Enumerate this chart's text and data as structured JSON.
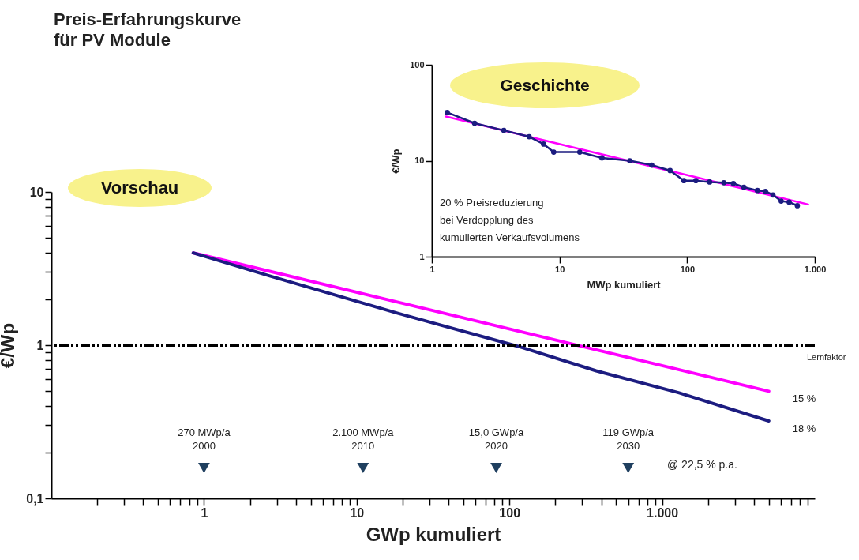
{
  "chart_data": [
    {
      "type": "line",
      "title": "Preis-Erfahrungskurve\nfür PV Module",
      "xlabel": "GWp kumuliert",
      "ylabel": "€/Wp",
      "log": "xy",
      "xlim": [
        0.1,
        10000
      ],
      "ylim": [
        0.1,
        10
      ],
      "xticks": [
        {
          "value": 0.2,
          "label": null
        },
        {
          "value": 0.3,
          "label": null
        },
        {
          "value": 0.4,
          "label": null
        },
        {
          "value": 0.5,
          "label": null
        },
        {
          "value": 0.6,
          "label": null
        },
        {
          "value": 0.7,
          "label": null
        },
        {
          "value": 0.8,
          "label": null
        },
        {
          "value": 0.9,
          "label": null
        },
        1,
        {
          "value": 2,
          "label": null
        },
        {
          "value": 3,
          "label": null
        },
        {
          "value": 4,
          "label": null
        },
        {
          "value": 5,
          "label": null
        },
        {
          "value": 6,
          "label": null
        },
        {
          "value": 7,
          "label": null
        },
        {
          "value": 8,
          "label": null
        },
        {
          "value": 9,
          "label": null
        },
        10,
        {
          "value": 20,
          "label": null
        },
        {
          "value": 30,
          "label": null
        },
        {
          "value": 40,
          "label": null
        },
        {
          "value": 50,
          "label": null
        },
        {
          "value": 60,
          "label": null
        },
        {
          "value": 70,
          "label": null
        },
        {
          "value": 80,
          "label": null
        },
        {
          "value": 90,
          "label": null
        },
        100,
        {
          "value": 200,
          "label": null
        },
        {
          "value": 300,
          "label": null
        },
        {
          "value": 400,
          "label": null
        },
        {
          "value": 500,
          "label": null
        },
        {
          "value": 600,
          "label": null
        },
        {
          "value": 700,
          "label": null
        },
        {
          "value": 800,
          "label": null
        },
        {
          "value": 900,
          "label": null
        },
        {
          "value": 1000,
          "label": "1.000"
        },
        {
          "value": 2000,
          "label": null
        },
        {
          "value": 3000,
          "label": null
        },
        {
          "value": 4000,
          "label": null
        },
        {
          "value": 5000,
          "label": null
        },
        {
          "value": 6000,
          "label": null
        },
        {
          "value": 7000,
          "label": null
        },
        {
          "value": 8000,
          "label": null
        },
        {
          "value": 9000,
          "label": null
        }
      ],
      "yticks": [
        {
          "value": 0.1,
          "label": "0,1"
        },
        {
          "value": 0.2,
          "label": null
        },
        {
          "value": 0.3,
          "label": null
        },
        {
          "value": 0.4,
          "label": null
        },
        {
          "value": 0.5,
          "label": null
        },
        {
          "value": 0.6,
          "label": null
        },
        {
          "value": 0.7,
          "label": null
        },
        {
          "value": 0.8,
          "label": null
        },
        {
          "value": 0.9,
          "label": null
        },
        1,
        {
          "value": 2,
          "label": null
        },
        {
          "value": 3,
          "label": null
        },
        {
          "value": 4,
          "label": null
        },
        {
          "value": 5,
          "label": null
        },
        {
          "value": 6,
          "label": null
        },
        {
          "value": 7,
          "label": null
        },
        {
          "value": 8,
          "label": null
        },
        {
          "value": 9,
          "label": null
        },
        10
      ],
      "series": [
        {
          "name": "15 %",
          "color": "#ff00ff",
          "x": [
            0.85,
            5000
          ],
          "values": [
            4,
            0.5
          ]
        },
        {
          "name": "18 %",
          "color": "#1c1c80",
          "x": [
            0.85,
            2.67,
            18.8,
            115,
            370,
            1280,
            5000
          ],
          "values": [
            4,
            2.84,
            1.61,
            0.98,
            0.68,
            0.49,
            0.32
          ]
        },
        {
          "type": "scatter",
          "marker": "triangle",
          "color": "#1f3f5f",
          "x": [
            1,
            11,
            82,
            600
          ],
          "values": [
            0.158,
            0.158,
            0.158,
            0.158
          ]
        }
      ],
      "ref_lines": [
        {
          "axis": "y",
          "value": 1,
          "label": "Lernfaktor",
          "color": "#000000",
          "line_style": "dashed"
        }
      ],
      "annotations": [
        "Vorschau",
        {
          "text": "270 MWp/a\n2000",
          "x": 1,
          "y": 0.158
        },
        {
          "text": "2.100 MWp/a\n2010",
          "x": 11,
          "y": 0.158
        },
        {
          "text": "15,0 GWp/a\n2020",
          "x": 82,
          "y": 0.158
        },
        {
          "text": "119 GWp/a\n2030",
          "x": 600,
          "y": 0.158
        },
        "@ 22,5 % p.a."
      ]
    },
    {
      "type": "line",
      "xlabel": "MWp kumuliert",
      "ylabel": "€/Wp",
      "log": "xy",
      "xlim": [
        1,
        1000
      ],
      "ylim": [
        1,
        100
      ],
      "xticks": [
        1,
        10,
        100,
        {
          "value": 1000,
          "label": "1.000"
        }
      ],
      "yticks": [
        1,
        10,
        100
      ],
      "series": [
        {
          "color": "#ff00ff",
          "x": [
            1.29,
            888
          ],
          "values": [
            28.9,
            3.5
          ]
        },
        {
          "color": "#1c1c80",
          "marker": "circle",
          "x": [
            1.32,
            2.16,
            3.66,
            5.78,
            7.5,
            9,
            14.4,
            21.5,
            35.5,
            52.8,
            73.5,
            94.3,
            117,
            150,
            194,
            230,
            278,
            355,
            411,
            470,
            545,
            630,
            730
          ],
          "values": [
            31.8,
            24.6,
            20.7,
            17.8,
            14.9,
            12.3,
            12.3,
            10.7,
            10,
            9,
            7.9,
            6.2,
            6.2,
            6,
            5.9,
            5.8,
            5.3,
            4.9,
            4.8,
            4.4,
            3.8,
            3.7,
            3.4
          ]
        }
      ],
      "annotations": [
        "Geschichte",
        "20 % Preisreduzierung\nbei Verdopplung des\nkumulierten Verkaufsvolumens"
      ]
    }
  ]
}
